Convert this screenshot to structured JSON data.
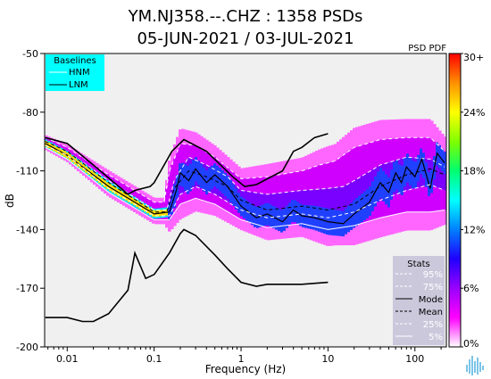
{
  "chart_data": {
    "type": "heatmap",
    "title": "YM.NJ358.--.CHZ : 1358 PSDs",
    "subtitle": "05-JUN-2021 / 03-JUL-2021",
    "corner_label": "PSD PDF",
    "xlabel": "Frequency (Hz)",
    "ylabel": "dB",
    "x_scale": "log",
    "xlim": [
      0.0055,
      230
    ],
    "ylim": [
      -200,
      -50
    ],
    "x_ticks": [
      {
        "value": 0.01,
        "label": "0.01"
      },
      {
        "value": 0.1,
        "label": "0.1"
      },
      {
        "value": 1,
        "label": "1"
      },
      {
        "value": 10,
        "label": "10"
      },
      {
        "value": 100,
        "label": "100"
      }
    ],
    "y_ticks": [
      {
        "value": -50,
        "label": "-50"
      },
      {
        "value": -80,
        "label": "-80"
      },
      {
        "value": -110,
        "label": "-110"
      },
      {
        "value": -140,
        "label": "-140"
      },
      {
        "value": -170,
        "label": "-170"
      },
      {
        "value": -200,
        "label": "-200"
      }
    ],
    "colorbar": {
      "ticks": [
        {
          "value": 0,
          "label": "0%"
        },
        {
          "value": 6,
          "label": "6%"
        },
        {
          "value": 12,
          "label": "12%"
        },
        {
          "value": 18,
          "label": "18%"
        },
        {
          "value": 24,
          "label": "24%"
        },
        {
          "value": 30,
          "label": "30+"
        }
      ],
      "colors": [
        "#ffffff",
        "#ff00ff",
        "#9a00ff",
        "#2000ff",
        "#0080ff",
        "#00ffff",
        "#00ff70",
        "#80ff00",
        "#ffff00",
        "#ff9000",
        "#ff0000"
      ]
    },
    "baselines_legend": {
      "title": "Baselines",
      "entries": [
        "HNM",
        "LNM"
      ],
      "background": "#00ffff"
    },
    "stats_legend": {
      "title": "Stats",
      "entries": [
        {
          "label": "95%",
          "style": "dashed",
          "color": "#ffffff"
        },
        {
          "label": "75%",
          "style": "dashed",
          "color": "#ffffff"
        },
        {
          "label": "Mode",
          "style": "solid",
          "color": "#000000"
        },
        {
          "label": "Mean",
          "style": "dashed",
          "color": "#000000"
        },
        {
          "label": "25%",
          "style": "dashed",
          "color": "#ffffff"
        },
        {
          "label": "5%",
          "style": "solid",
          "color": "#ffffff"
        }
      ],
      "background": "#ccc8dc"
    },
    "hnm": [
      [
        0.0056,
        -93
      ],
      [
        0.01,
        -96
      ],
      [
        0.02,
        -107
      ],
      [
        0.05,
        -122
      ],
      [
        0.06,
        -120
      ],
      [
        0.09,
        -118
      ],
      [
        0.1,
        -116
      ],
      [
        0.16,
        -100
      ],
      [
        0.22,
        -94
      ],
      [
        0.4,
        -100
      ],
      [
        0.8,
        -113
      ],
      [
        1.1,
        -118
      ],
      [
        1.5,
        -117
      ],
      [
        3,
        -110
      ],
      [
        4,
        -100
      ],
      [
        5,
        -98
      ],
      [
        7,
        -93
      ],
      [
        10,
        -91
      ]
    ],
    "lnm": [
      [
        0.0056,
        -185
      ],
      [
        0.01,
        -185
      ],
      [
        0.015,
        -187
      ],
      [
        0.02,
        -187
      ],
      [
        0.03,
        -183
      ],
      [
        0.05,
        -171
      ],
      [
        0.06,
        -152
      ],
      [
        0.08,
        -165
      ],
      [
        0.1,
        -163
      ],
      [
        0.15,
        -152
      ],
      [
        0.2,
        -142
      ],
      [
        0.22,
        -140
      ],
      [
        0.3,
        -143
      ],
      [
        0.5,
        -153
      ],
      [
        0.7,
        -160
      ],
      [
        1,
        -167
      ],
      [
        1.5,
        -169
      ],
      [
        2,
        -168
      ],
      [
        5,
        -168
      ],
      [
        10,
        -167
      ]
    ],
    "percentile_series": [
      {
        "name": "95%",
        "points": [
          [
            0.0056,
            -93
          ],
          [
            0.01,
            -98
          ],
          [
            0.03,
            -112
          ],
          [
            0.1,
            -126
          ],
          [
            0.13,
            -126
          ],
          [
            0.15,
            -110
          ],
          [
            0.2,
            -96
          ],
          [
            0.3,
            -97
          ],
          [
            0.5,
            -103
          ],
          [
            1,
            -114
          ],
          [
            2,
            -113
          ],
          [
            5,
            -110
          ],
          [
            8,
            -107
          ],
          [
            12,
            -105
          ],
          [
            20,
            -98
          ],
          [
            40,
            -94
          ],
          [
            80,
            -93
          ],
          [
            150,
            -93
          ],
          [
            220,
            -100
          ]
        ]
      },
      {
        "name": "75%",
        "points": [
          [
            0.0056,
            -95
          ],
          [
            0.01,
            -100
          ],
          [
            0.03,
            -115
          ],
          [
            0.1,
            -130
          ],
          [
            0.14,
            -130
          ],
          [
            0.17,
            -115
          ],
          [
            0.25,
            -103
          ],
          [
            0.4,
            -107
          ],
          [
            0.7,
            -113
          ],
          [
            1,
            -120
          ],
          [
            2,
            -122
          ],
          [
            5,
            -120
          ],
          [
            10,
            -119
          ],
          [
            15,
            -118
          ],
          [
            20,
            -115
          ],
          [
            40,
            -107
          ],
          [
            80,
            -103
          ],
          [
            150,
            -104
          ],
          [
            220,
            -108
          ]
        ]
      },
      {
        "name": "Mode",
        "points": [
          [
            0.0056,
            -96
          ],
          [
            0.01,
            -102
          ],
          [
            0.03,
            -118
          ],
          [
            0.1,
            -132
          ],
          [
            0.15,
            -131
          ],
          [
            0.18,
            -120
          ],
          [
            0.2,
            -111
          ],
          [
            0.25,
            -115
          ],
          [
            0.3,
            -109
          ],
          [
            0.4,
            -116
          ],
          [
            0.5,
            -112
          ],
          [
            0.7,
            -118
          ],
          [
            1,
            -128
          ],
          [
            1.5,
            -134
          ],
          [
            2,
            -132
          ],
          [
            3,
            -136
          ],
          [
            4,
            -130
          ],
          [
            5,
            -133
          ],
          [
            7,
            -134
          ],
          [
            10,
            -136
          ],
          [
            15,
            -137
          ],
          [
            20,
            -132
          ],
          [
            30,
            -126
          ],
          [
            40,
            -116
          ],
          [
            50,
            -121
          ],
          [
            60,
            -111
          ],
          [
            70,
            -116
          ],
          [
            80,
            -108
          ],
          [
            100,
            -113
          ],
          [
            120,
            -104
          ],
          [
            150,
            -119
          ],
          [
            180,
            -101
          ],
          [
            220,
            -106
          ]
        ]
      },
      {
        "name": "Mean",
        "points": [
          [
            0.0056,
            -95
          ],
          [
            0.01,
            -100
          ],
          [
            0.03,
            -116
          ],
          [
            0.1,
            -131
          ],
          [
            0.14,
            -131
          ],
          [
            0.17,
            -119
          ],
          [
            0.25,
            -110
          ],
          [
            0.4,
            -113
          ],
          [
            0.7,
            -118
          ],
          [
            1,
            -125
          ],
          [
            2,
            -130
          ],
          [
            5,
            -128
          ],
          [
            10,
            -130
          ],
          [
            20,
            -127
          ],
          [
            40,
            -118
          ],
          [
            80,
            -112
          ],
          [
            150,
            -109
          ],
          [
            220,
            -112
          ]
        ]
      },
      {
        "name": "25%",
        "points": [
          [
            0.0056,
            -97
          ],
          [
            0.01,
            -102
          ],
          [
            0.03,
            -119
          ],
          [
            0.1,
            -133
          ],
          [
            0.15,
            -133
          ],
          [
            0.2,
            -122
          ],
          [
            0.3,
            -118
          ],
          [
            0.5,
            -122
          ],
          [
            1,
            -130
          ],
          [
            2,
            -134
          ],
          [
            5,
            -132
          ],
          [
            10,
            -134
          ],
          [
            20,
            -131
          ],
          [
            40,
            -125
          ],
          [
            80,
            -120
          ],
          [
            150,
            -117
          ],
          [
            220,
            -120
          ]
        ]
      },
      {
        "name": "5%",
        "points": [
          [
            0.0056,
            -98
          ],
          [
            0.01,
            -104
          ],
          [
            0.03,
            -121
          ],
          [
            0.1,
            -135
          ],
          [
            0.15,
            -135
          ],
          [
            0.2,
            -127
          ],
          [
            0.3,
            -124
          ],
          [
            0.5,
            -127
          ],
          [
            1,
            -135
          ],
          [
            2,
            -139
          ],
          [
            5,
            -137
          ],
          [
            10,
            -140
          ],
          [
            20,
            -138
          ],
          [
            40,
            -134
          ],
          [
            80,
            -131
          ],
          [
            150,
            -131
          ],
          [
            220,
            -130
          ]
        ]
      }
    ],
    "grid": false
  }
}
